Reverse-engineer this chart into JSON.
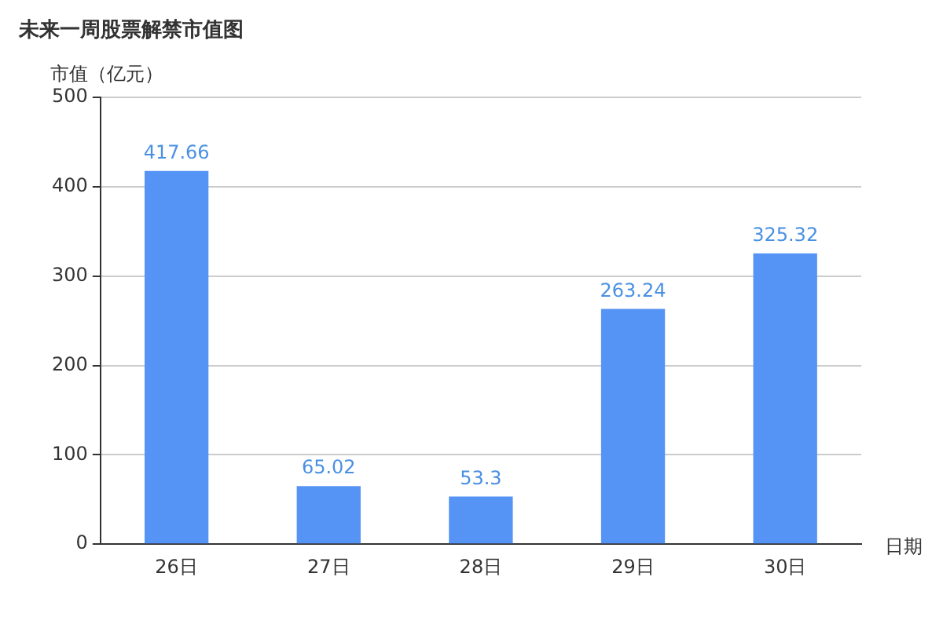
{
  "chart_data": {
    "type": "bar",
    "title": "未来一周股票解禁市值图",
    "ylabel": "市值（亿元）",
    "xlabel": "日期",
    "categories": [
      "26日",
      "27日",
      "28日",
      "29日",
      "30日"
    ],
    "values": [
      417.66,
      65.02,
      53.3,
      263.24,
      325.32
    ],
    "color": "#5594f5",
    "ylim": [
      0,
      500
    ],
    "yticks": [
      0,
      100,
      200,
      300,
      400,
      500
    ],
    "grid": "y",
    "data_labels": true
  }
}
